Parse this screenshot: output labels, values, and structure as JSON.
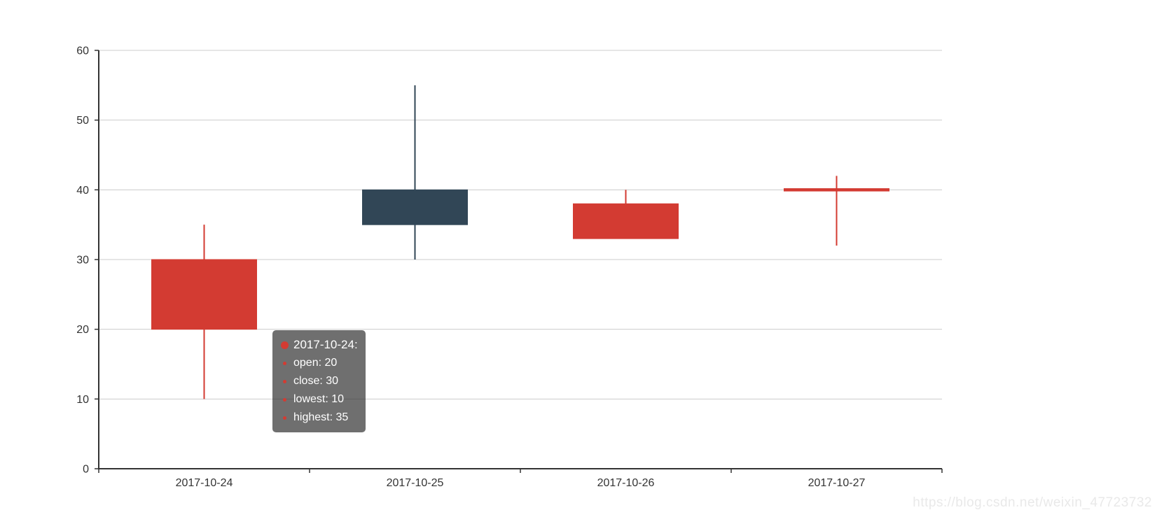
{
  "chart_data": {
    "type": "candlestick",
    "title": "",
    "xlabel": "",
    "ylabel": "",
    "categories": [
      "2017-10-24",
      "2017-10-25",
      "2017-10-26",
      "2017-10-27"
    ],
    "series": [
      {
        "name": "candlestick",
        "values": [
          {
            "open": 20,
            "close": 30,
            "lowest": 10,
            "highest": 35
          },
          {
            "open": 40,
            "close": 35,
            "lowest": 30,
            "highest": 55
          },
          {
            "open": 33,
            "close": 38,
            "lowest": 33,
            "highest": 40
          },
          {
            "open": 40,
            "close": 40,
            "lowest": 32,
            "highest": 42
          }
        ]
      }
    ],
    "ylim": [
      0,
      60
    ],
    "y_ticks": [
      0,
      10,
      20,
      30,
      40,
      50,
      60
    ],
    "grid": true,
    "legend": "none",
    "colors": {
      "bullish": "#d33b32",
      "bearish": "#314656",
      "axis": "#333333",
      "tick_label": "#333333",
      "gridline": "#cccccc"
    }
  },
  "tooltip": {
    "title": "2017-10-24:",
    "items": [
      "open: 20",
      "close: 30",
      "lowest: 10",
      "highest: 35"
    ],
    "marker_color": "#d33b32",
    "background": "rgba(50,50,50,0.7)"
  },
  "watermark": "https://blog.csdn.net/weixin_47723732"
}
